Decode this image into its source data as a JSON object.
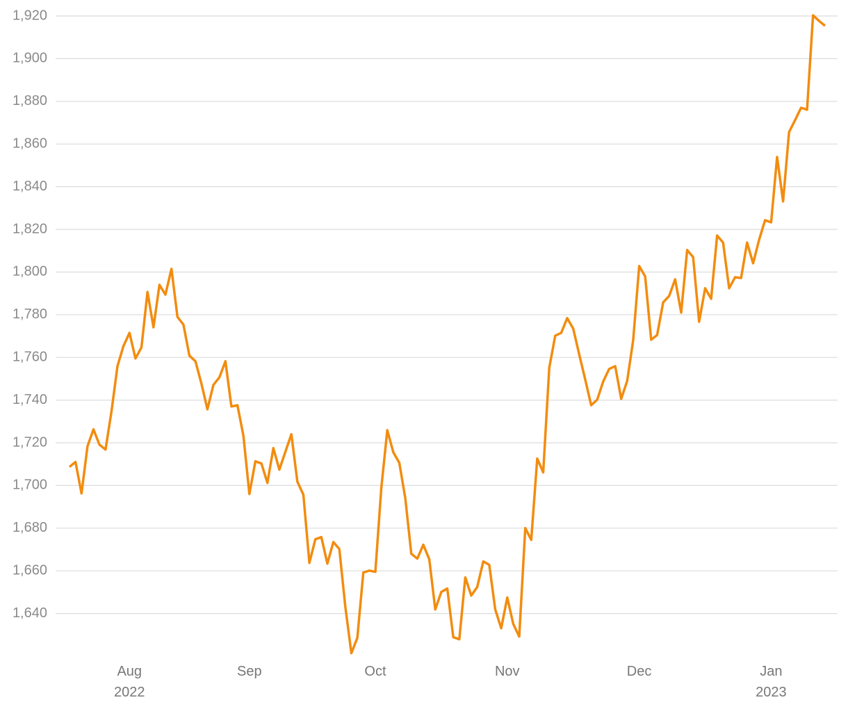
{
  "chart_data": {
    "type": "line",
    "color": "#f28c0f",
    "grid": true,
    "categories": [
      null,
      null,
      null,
      null,
      null,
      null,
      null,
      null,
      null,
      null,
      "Aug 2022",
      null,
      null,
      null,
      null,
      null,
      null,
      null,
      null,
      null,
      null,
      null,
      null,
      null,
      null,
      null,
      null,
      null,
      null,
      null,
      "Sep",
      null,
      null,
      null,
      null,
      null,
      null,
      null,
      null,
      null,
      null,
      null,
      null,
      null,
      null,
      null,
      null,
      null,
      null,
      null,
      null,
      "Oct",
      null,
      null,
      null,
      null,
      null,
      null,
      null,
      null,
      null,
      null,
      null,
      null,
      null,
      null,
      null,
      null,
      null,
      null,
      null,
      null,
      null,
      "Nov",
      null,
      null,
      null,
      null,
      null,
      null,
      null,
      null,
      null,
      null,
      null,
      null,
      null,
      null,
      null,
      null,
      null,
      null,
      null,
      null,
      null,
      "Dec",
      null,
      null,
      null,
      null,
      null,
      null,
      null,
      null,
      null,
      null,
      null,
      null,
      null,
      null,
      null,
      null,
      null,
      null,
      null,
      null,
      null,
      "Jan 2023",
      null,
      null,
      null,
      null,
      null,
      null,
      null,
      null,
      null
    ],
    "values": [
      1708.7,
      1711,
      1696.3,
      1718.4,
      1726.3,
      1719.1,
      1716.8,
      1734.7,
      1755.9,
      1765.3,
      1771.5,
      1759.5,
      1764.7,
      1790.7,
      1774.1,
      1794,
      1789.4,
      1801.5,
      1779,
      1775.4,
      1760.8,
      1758.2,
      1747.7,
      1735.7,
      1747.1,
      1750.7,
      1758.2,
      1737,
      1737.6,
      1723.3,
      1696,
      1711.3,
      1710.3,
      1701.2,
      1717.5,
      1707.4,
      1715.8,
      1724,
      1701.8,
      1695.6,
      1663.7,
      1674.8,
      1675.8,
      1663.4,
      1673.5,
      1670.2,
      1643.2,
      1621.4,
      1628.6,
      1659.2,
      1660.1,
      1659.5,
      1698.9,
      1725.9,
      1715.5,
      1710.6,
      1694,
      1668,
      1665.7,
      1672.2,
      1665.4,
      1641.9,
      1650.1,
      1651.7,
      1628.9,
      1627.9,
      1656.9,
      1648.4,
      1652.4,
      1664.4,
      1662.8,
      1641.9,
      1633.1,
      1647.5,
      1635.1,
      1629.2,
      1680,
      1674.5,
      1712.6,
      1706.1,
      1755.1,
      1770.2,
      1771.5,
      1778.4,
      1773.5,
      1761.4,
      1749.7,
      1737.6,
      1740.2,
      1748.7,
      1754.6,
      1755.9,
      1740.6,
      1749,
      1767.9,
      1802.8,
      1797.9,
      1768.3,
      1770.5,
      1785.8,
      1788.8,
      1796.6,
      1781,
      1810.3,
      1807,
      1776.7,
      1792.4,
      1787.5,
      1817.1,
      1813.8,
      1792.4,
      1797.6,
      1797.2,
      1813.8,
      1804.1,
      1815.1,
      1824.3,
      1823.3,
      1853.9,
      1833.1,
      1865.6,
      1871.2,
      1877,
      1876.1,
      1920.3,
      1917.7,
      1915.4
    ],
    "ylim": [
      1620,
      1920
    ],
    "yticks": [
      {
        "value": 1640,
        "label": "1,640"
      },
      {
        "value": 1660,
        "label": "1,660"
      },
      {
        "value": 1680,
        "label": "1,680"
      },
      {
        "value": 1700,
        "label": "1,700"
      },
      {
        "value": 1720,
        "label": "1,720"
      },
      {
        "value": 1740,
        "label": "1,740"
      },
      {
        "value": 1760,
        "label": "1,760"
      },
      {
        "value": 1780,
        "label": "1,780"
      },
      {
        "value": 1800,
        "label": "1,800"
      },
      {
        "value": 1820,
        "label": "1,820"
      },
      {
        "value": 1840,
        "label": "1,840"
      },
      {
        "value": 1860,
        "label": "1,860"
      },
      {
        "value": 1880,
        "label": "1,880"
      },
      {
        "value": 1900,
        "label": "1,900"
      },
      {
        "value": 1920,
        "label": "1,920"
      }
    ]
  }
}
